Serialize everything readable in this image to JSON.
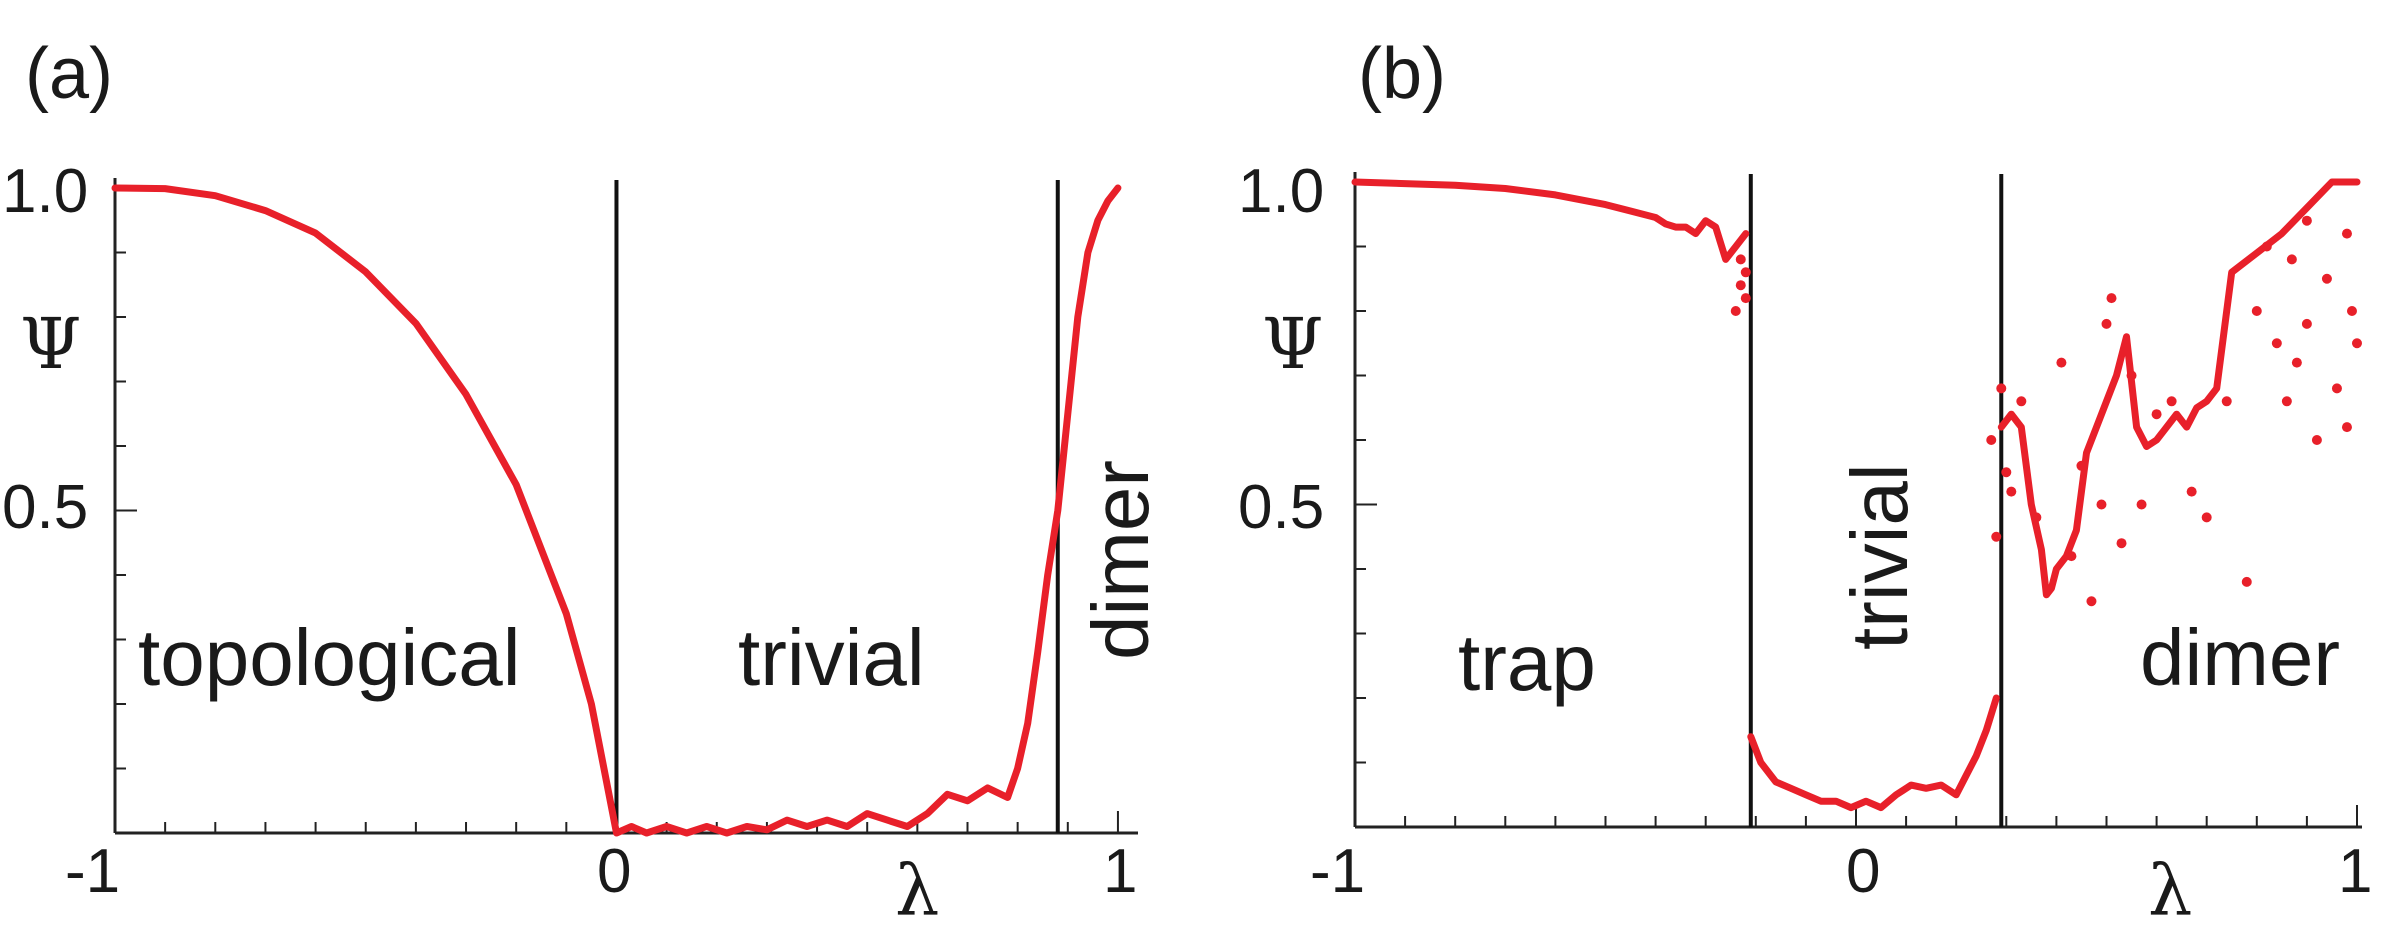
{
  "chart_data": [
    {
      "type": "line",
      "panel_label": "(a)",
      "xlabel": "λ",
      "ylabel": "Ψ",
      "xlim": [
        -1,
        1.04
      ],
      "ylim": [
        0.0,
        1.0
      ],
      "x_tick_labels": [
        "-1",
        "0",
        "1"
      ],
      "y_tick_labels": [
        "1.0",
        "0.5"
      ],
      "phase_boundaries": [
        0.0,
        0.88
      ],
      "regions": [
        {
          "label": "topological",
          "rotated": false
        },
        {
          "label": "trivial",
          "rotated": false
        },
        {
          "label": "dimer",
          "rotated": true
        }
      ],
      "series": [
        {
          "name": "Ψ",
          "color": "#e8202a",
          "x": [
            -1.0,
            -0.9,
            -0.8,
            -0.7,
            -0.6,
            -0.5,
            -0.4,
            -0.3,
            -0.2,
            -0.1,
            -0.05,
            0.0,
            0.03,
            0.06,
            0.1,
            0.14,
            0.18,
            0.22,
            0.26,
            0.3,
            0.34,
            0.38,
            0.42,
            0.46,
            0.5,
            0.54,
            0.58,
            0.62,
            0.66,
            0.7,
            0.74,
            0.78,
            0.8,
            0.82,
            0.84,
            0.86,
            0.88,
            0.9,
            0.92,
            0.94,
            0.96,
            0.98,
            1.0
          ],
          "y": [
            1.0,
            0.999,
            0.988,
            0.965,
            0.93,
            0.87,
            0.79,
            0.68,
            0.54,
            0.34,
            0.2,
            0.0,
            0.01,
            0.0,
            0.01,
            0.0,
            0.01,
            0.0,
            0.01,
            0.005,
            0.02,
            0.01,
            0.02,
            0.01,
            0.03,
            0.02,
            0.01,
            0.03,
            0.06,
            0.05,
            0.07,
            0.055,
            0.1,
            0.17,
            0.28,
            0.4,
            0.5,
            0.65,
            0.8,
            0.9,
            0.95,
            0.98,
            1.0
          ]
        }
      ]
    },
    {
      "type": "line",
      "panel_label": "(b)",
      "xlabel": "λ",
      "ylabel": "Ψ",
      "xlim": [
        -1,
        1.01
      ],
      "ylim": [
        0.0,
        1.0
      ],
      "x_tick_labels": [
        "-1",
        "0",
        "1"
      ],
      "y_tick_labels": [
        "1.0",
        "0.5"
      ],
      "phase_boundaries": [
        -0.21,
        0.29
      ],
      "regions": [
        {
          "label": "trap",
          "rotated": false
        },
        {
          "label": "trivial",
          "rotated": true
        },
        {
          "label": "dimer",
          "rotated": false
        }
      ],
      "series": [
        {
          "name": "Ψ trap",
          "color": "#e8202a",
          "x": [
            -1.0,
            -0.8,
            -0.7,
            -0.6,
            -0.5,
            -0.45,
            -0.4,
            -0.38,
            -0.36,
            -0.34,
            -0.32,
            -0.3,
            -0.28,
            -0.26,
            -0.24,
            -0.22
          ],
          "y": [
            1.0,
            0.995,
            0.99,
            0.98,
            0.965,
            0.955,
            0.945,
            0.935,
            0.93,
            0.93,
            0.92,
            0.94,
            0.93,
            0.88,
            0.9,
            0.92
          ]
        },
        {
          "name": "Ψ trivial",
          "color": "#e8202a",
          "x": [
            -0.21,
            -0.19,
            -0.16,
            -0.13,
            -0.1,
            -0.07,
            -0.04,
            -0.01,
            0.02,
            0.05,
            0.08,
            0.11,
            0.14,
            0.17,
            0.2,
            0.22,
            0.24,
            0.26,
            0.28
          ],
          "y": [
            0.14,
            0.1,
            0.07,
            0.06,
            0.05,
            0.04,
            0.04,
            0.03,
            0.04,
            0.03,
            0.05,
            0.065,
            0.06,
            0.065,
            0.05,
            0.08,
            0.11,
            0.15,
            0.2
          ]
        },
        {
          "name": "Ψ dimer",
          "color": "#e8202a",
          "x": [
            0.29,
            0.31,
            0.33,
            0.35,
            0.37,
            0.38,
            0.39,
            0.4,
            0.42,
            0.44,
            0.46,
            0.48,
            0.5,
            0.52,
            0.54,
            0.56,
            0.58,
            0.6,
            0.62,
            0.64,
            0.66,
            0.68,
            0.7,
            0.72,
            0.75,
            0.8,
            0.85,
            0.9,
            0.95,
            1.0
          ],
          "y": [
            0.62,
            0.64,
            0.62,
            0.5,
            0.43,
            0.36,
            0.37,
            0.4,
            0.42,
            0.46,
            0.58,
            0.62,
            0.66,
            0.7,
            0.76,
            0.62,
            0.59,
            0.6,
            0.62,
            0.64,
            0.62,
            0.65,
            0.66,
            0.68,
            0.86,
            0.89,
            0.92,
            0.96,
            1.0,
            1.0
          ]
        }
      ],
      "scatter_points": {
        "x": [
          -0.24,
          -0.23,
          -0.22,
          -0.23,
          -0.22,
          0.28,
          0.27,
          0.29,
          0.3,
          0.31,
          0.33,
          0.36,
          0.41,
          0.43,
          0.45,
          0.47,
          0.49,
          0.5,
          0.51,
          0.53,
          0.55,
          0.57,
          0.6,
          0.63,
          0.67,
          0.7,
          0.74,
          0.78,
          0.8,
          0.82,
          0.84,
          0.86,
          0.88,
          0.9,
          0.92,
          0.94,
          0.96,
          0.98,
          0.99,
          1.0,
          0.98,
          0.9,
          0.87
        ],
        "y": [
          0.8,
          0.84,
          0.86,
          0.88,
          0.82,
          0.45,
          0.6,
          0.68,
          0.55,
          0.52,
          0.66,
          0.48,
          0.72,
          0.42,
          0.56,
          0.35,
          0.5,
          0.78,
          0.82,
          0.44,
          0.7,
          0.5,
          0.64,
          0.66,
          0.52,
          0.48,
          0.66,
          0.38,
          0.8,
          0.9,
          0.75,
          0.66,
          0.72,
          0.78,
          0.6,
          0.85,
          0.68,
          0.92,
          0.8,
          0.75,
          0.62,
          0.94,
          0.88
        ]
      }
    }
  ]
}
